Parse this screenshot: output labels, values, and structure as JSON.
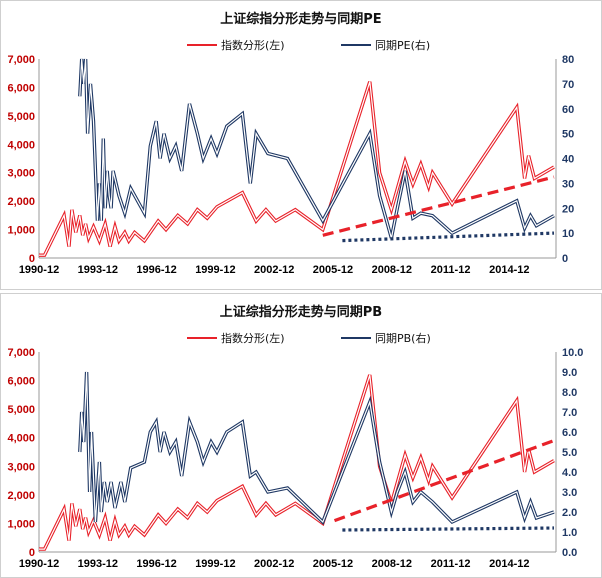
{
  "chart_data": [
    {
      "type": "line",
      "title": "上证综指分形走势与同期PE",
      "series": [
        {
          "name": "指数分形(左)",
          "axis": "left",
          "color": "#e8222a",
          "points": [
            [
              1990.92,
              100
            ],
            [
              1991.2,
              100
            ],
            [
              1991.7,
              800
            ],
            [
              1992.2,
              1500
            ],
            [
              1992.45,
              400
            ],
            [
              1992.6,
              1700
            ],
            [
              1992.8,
              900
            ],
            [
              1993.0,
              1500
            ],
            [
              1993.15,
              800
            ],
            [
              1993.3,
              1200
            ],
            [
              1993.45,
              700
            ],
            [
              1993.7,
              1100
            ],
            [
              1994.0,
              600
            ],
            [
              1994.3,
              1200
            ],
            [
              1994.55,
              400
            ],
            [
              1994.8,
              1100
            ],
            [
              1995.0,
              600
            ],
            [
              1995.3,
              900
            ],
            [
              1995.5,
              600
            ],
            [
              1995.8,
              900
            ],
            [
              1996.3,
              600
            ],
            [
              1997.0,
              1300
            ],
            [
              1997.4,
              1000
            ],
            [
              1998.0,
              1500
            ],
            [
              1998.5,
              1200
            ],
            [
              1999.0,
              1700
            ],
            [
              1999.5,
              1400
            ],
            [
              2000.0,
              1800
            ],
            [
              2001.3,
              2300
            ],
            [
              2002.0,
              1300
            ],
            [
              2002.5,
              1700
            ],
            [
              2003.0,
              1300
            ],
            [
              2004.0,
              1700
            ],
            [
              2005.4,
              1000
            ],
            [
              2007.8,
              6200
            ],
            [
              2008.3,
              3000
            ],
            [
              2008.9,
              1700
            ],
            [
              2009.6,
              3400
            ],
            [
              2010.0,
              2600
            ],
            [
              2010.4,
              3300
            ],
            [
              2010.8,
              2500
            ],
            [
              2011.0,
              3000
            ],
            [
              2012.0,
              1900
            ],
            [
              2015.3,
              5300
            ],
            [
              2015.7,
              2800
            ],
            [
              2015.9,
              3600
            ],
            [
              2016.2,
              2800
            ],
            [
              2017.2,
              3200
            ]
          ]
        },
        {
          "name": "同期PE(右)",
          "axis": "right",
          "color": "#1f3864",
          "points": [
            [
              1993.0,
              65
            ],
            [
              1993.1,
              80
            ],
            [
              1993.2,
              70
            ],
            [
              1993.3,
              80
            ],
            [
              1993.4,
              50
            ],
            [
              1993.55,
              70
            ],
            [
              1993.7,
              55
            ],
            [
              1993.9,
              15
            ],
            [
              1994.0,
              30
            ],
            [
              1994.1,
              15
            ],
            [
              1994.2,
              48
            ],
            [
              1994.3,
              20
            ],
            [
              1994.4,
              35
            ],
            [
              1994.5,
              25
            ],
            [
              1994.6,
              20
            ],
            [
              1994.7,
              35
            ],
            [
              1995.0,
              25
            ],
            [
              1995.3,
              18
            ],
            [
              1995.6,
              28
            ],
            [
              1996.3,
              18
            ],
            [
              1996.6,
              45
            ],
            [
              1996.9,
              55
            ],
            [
              1997.1,
              40
            ],
            [
              1997.3,
              50
            ],
            [
              1997.6,
              40
            ],
            [
              1997.9,
              45
            ],
            [
              1998.2,
              35
            ],
            [
              1998.6,
              62
            ],
            [
              1999.0,
              50
            ],
            [
              1999.3,
              40
            ],
            [
              1999.7,
              48
            ],
            [
              2000.0,
              42
            ],
            [
              2000.5,
              53
            ],
            [
              2001.3,
              58
            ],
            [
              2001.7,
              30
            ],
            [
              2002.0,
              50
            ],
            [
              2002.6,
              42
            ],
            [
              2003.6,
              40
            ],
            [
              2005.4,
              15
            ],
            [
              2007.8,
              50
            ],
            [
              2008.3,
              25
            ],
            [
              2008.9,
              8
            ],
            [
              2009.2,
              20
            ],
            [
              2009.6,
              35
            ],
            [
              2010.0,
              16
            ],
            [
              2010.4,
              18
            ],
            [
              2011.0,
              17
            ],
            [
              2012.0,
              10
            ],
            [
              2015.3,
              23
            ],
            [
              2015.7,
              12
            ],
            [
              2016.0,
              17
            ],
            [
              2016.3,
              13
            ],
            [
              2017.2,
              17
            ]
          ]
        },
        {
          "name": "",
          "axis": "left",
          "style": "dashed",
          "color": "#e8222a",
          "points": [
            [
              2005.4,
              800
            ],
            [
              2017.2,
              2850
            ]
          ]
        },
        {
          "name": "",
          "axis": "right",
          "style": "dotted",
          "color": "#1f3864",
          "points": [
            [
              2006.4,
              7
            ],
            [
              2017.2,
              10
            ]
          ]
        }
      ],
      "xlabel": "",
      "ylabel": "",
      "x_ticks": [
        "1990-12",
        "1993-12",
        "1996-12",
        "1999-12",
        "2002-12",
        "2005-12",
        "2008-12",
        "2011-12",
        "2014-12"
      ],
      "xlim": [
        1990.92,
        2017.3
      ],
      "ylim": [
        0,
        7000
      ],
      "y_ticks": [
        "0",
        "1,000",
        "2,000",
        "3,000",
        "4,000",
        "5,000",
        "6,000",
        "7,000"
      ],
      "y2lim": [
        0,
        80
      ],
      "y2_ticks": [
        "0",
        "10",
        "20",
        "30",
        "40",
        "50",
        "60",
        "70",
        "80"
      ],
      "grid": false,
      "legend": "top"
    },
    {
      "type": "line",
      "title": "上证综指分形走势与同期PB",
      "series": [
        {
          "name": "指数分形(左)",
          "axis": "left",
          "color": "#e8222a",
          "points": [
            [
              1990.92,
              100
            ],
            [
              1991.2,
              100
            ],
            [
              1991.7,
              800
            ],
            [
              1992.2,
              1500
            ],
            [
              1992.45,
              400
            ],
            [
              1992.6,
              1700
            ],
            [
              1992.8,
              900
            ],
            [
              1993.0,
              1500
            ],
            [
              1993.15,
              800
            ],
            [
              1993.3,
              1200
            ],
            [
              1993.45,
              700
            ],
            [
              1993.7,
              1100
            ],
            [
              1994.0,
              600
            ],
            [
              1994.3,
              1200
            ],
            [
              1994.55,
              400
            ],
            [
              1994.8,
              1100
            ],
            [
              1995.0,
              600
            ],
            [
              1995.3,
              900
            ],
            [
              1995.5,
              600
            ],
            [
              1995.8,
              900
            ],
            [
              1996.3,
              600
            ],
            [
              1997.0,
              1300
            ],
            [
              1997.4,
              1000
            ],
            [
              1998.0,
              1500
            ],
            [
              1998.5,
              1200
            ],
            [
              1999.0,
              1700
            ],
            [
              1999.5,
              1400
            ],
            [
              2000.0,
              1800
            ],
            [
              2001.3,
              2300
            ],
            [
              2002.0,
              1300
            ],
            [
              2002.5,
              1700
            ],
            [
              2003.0,
              1300
            ],
            [
              2004.0,
              1700
            ],
            [
              2005.4,
              1000
            ],
            [
              2007.8,
              6200
            ],
            [
              2008.3,
              3000
            ],
            [
              2008.9,
              1700
            ],
            [
              2009.6,
              3400
            ],
            [
              2010.0,
              2600
            ],
            [
              2010.4,
              3300
            ],
            [
              2010.8,
              2500
            ],
            [
              2011.0,
              3000
            ],
            [
              2012.0,
              1900
            ],
            [
              2015.3,
              5300
            ],
            [
              2015.7,
              2800
            ],
            [
              2015.9,
              3600
            ],
            [
              2016.2,
              2800
            ],
            [
              2017.2,
              3200
            ]
          ]
        },
        {
          "name": "同期PB(右)",
          "axis": "right",
          "color": "#1f3864",
          "points": [
            [
              1993.0,
              5
            ],
            [
              1993.1,
              7
            ],
            [
              1993.2,
              5.5
            ],
            [
              1993.35,
              9
            ],
            [
              1993.5,
              3
            ],
            [
              1993.6,
              6
            ],
            [
              1993.8,
              1.5
            ],
            [
              1994.0,
              4.5
            ],
            [
              1994.1,
              2
            ],
            [
              1994.25,
              3.5
            ],
            [
              1994.4,
              2.5
            ],
            [
              1994.6,
              3.5
            ],
            [
              1994.8,
              2.2
            ],
            [
              1995.1,
              3.5
            ],
            [
              1995.3,
              2.5
            ],
            [
              1995.6,
              4.2
            ],
            [
              1996.3,
              4.5
            ],
            [
              1996.6,
              6
            ],
            [
              1996.9,
              6.5
            ],
            [
              1997.1,
              5
            ],
            [
              1997.3,
              6
            ],
            [
              1997.6,
              5
            ],
            [
              1997.9,
              5.5
            ],
            [
              1998.2,
              3.8
            ],
            [
              1998.6,
              6.5
            ],
            [
              1999.0,
              5.5
            ],
            [
              1999.3,
              4.5
            ],
            [
              1999.7,
              5.5
            ],
            [
              2000.0,
              5
            ],
            [
              2000.5,
              6
            ],
            [
              2001.3,
              6.5
            ],
            [
              2001.7,
              3.8
            ],
            [
              2002.0,
              4
            ],
            [
              2002.6,
              3
            ],
            [
              2003.6,
              3.2
            ],
            [
              2005.4,
              1.5
            ],
            [
              2007.8,
              7.5
            ],
            [
              2008.3,
              4.5
            ],
            [
              2008.9,
              2
            ],
            [
              2009.2,
              3
            ],
            [
              2009.6,
              4
            ],
            [
              2010.0,
              2.5
            ],
            [
              2010.4,
              3
            ],
            [
              2011.0,
              2.5
            ],
            [
              2012.0,
              1.5
            ],
            [
              2015.3,
              3
            ],
            [
              2015.7,
              1.7
            ],
            [
              2016.0,
              2.5
            ],
            [
              2016.3,
              1.7
            ],
            [
              2017.2,
              2
            ]
          ]
        },
        {
          "name": "",
          "axis": "left",
          "style": "dashed",
          "color": "#e8222a",
          "points": [
            [
              2006.0,
              1100
            ],
            [
              2017.2,
              3900
            ]
          ]
        },
        {
          "name": "",
          "axis": "right",
          "style": "dotted",
          "color": "#1f3864",
          "points": [
            [
              2006.4,
              1.1
            ],
            [
              2017.2,
              1.2
            ]
          ]
        }
      ],
      "xlabel": "",
      "ylabel": "",
      "x_ticks": [
        "1990-12",
        "1993-12",
        "1996-12",
        "1999-12",
        "2002-12",
        "2005-12",
        "2008-12",
        "2011-12",
        "2014-12"
      ],
      "xlim": [
        1990.92,
        2017.3
      ],
      "ylim": [
        0,
        7000
      ],
      "y_ticks": [
        "0",
        "1,000",
        "2,000",
        "3,000",
        "4,000",
        "5,000",
        "6,000",
        "7,000"
      ],
      "y2lim": [
        0,
        10
      ],
      "y2_ticks": [
        "0.0",
        "1.0",
        "2.0",
        "3.0",
        "4.0",
        "5.0",
        "6.0",
        "7.0",
        "8.0",
        "9.0",
        "10.0"
      ],
      "grid": false,
      "legend": "top"
    }
  ]
}
